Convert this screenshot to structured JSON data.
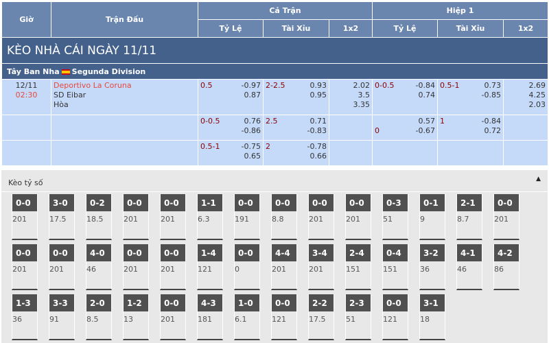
{
  "header": {
    "time": "Giờ",
    "match": "Trận Đấu",
    "full": "Cả Trận",
    "half": "Hiệp 1",
    "hdp": "Tỷ Lệ",
    "ou": "Tài Xỉu",
    "x12": "1x2"
  },
  "title": "KÈO NHÀ CÁI NGÀY 11/11",
  "league": {
    "country": "Tây Ban Nha",
    "name": "Segunda Division",
    "flag_colors": [
      "#c60b1e",
      "#ffc400"
    ]
  },
  "match": {
    "date": "12/11",
    "time": "02:30",
    "home": "Deportivo La Coruna",
    "away": "SD Eibar",
    "draw": "Hòa"
  },
  "rows": [
    {
      "ft_hdp": "0.5",
      "ft_hdp_o": [
        "-0.97",
        "0.87"
      ],
      "ft_ou": "2-2.5",
      "ft_ou_o": [
        "0.93",
        "0.95"
      ],
      "ft_1x2": [
        "2.02",
        "3.5",
        "3.35"
      ],
      "h1_hdp": "0-0.5",
      "h1_hdp_o": [
        "-0.84",
        "0.74"
      ],
      "h1_ou": "0.5-1",
      "h1_ou_o": [
        "0.73",
        "-0.85"
      ],
      "h1_1x2": [
        "2.69",
        "4.25",
        "2.03"
      ]
    },
    {
      "ft_hdp": "0-0.5",
      "ft_hdp_o": [
        "0.76",
        "-0.86"
      ],
      "ft_ou": "2.5",
      "ft_ou_o": [
        "0.71",
        "-0.83"
      ],
      "h1_hdp": "0",
      "h1_hdp_o": [
        "0.57",
        "-0.67"
      ],
      "h1_ou": "1",
      "h1_ou_o": [
        "-0.84",
        "0.72"
      ]
    },
    {
      "ft_hdp": "0.5-1",
      "ft_hdp_o": [
        "-0.75",
        "0.65"
      ],
      "ft_ou": "2",
      "ft_ou_o": [
        "-0.78",
        "0.66"
      ]
    }
  ],
  "correct_score": {
    "label": "Kèo tỷ số",
    "items": [
      [
        "0-0",
        "201"
      ],
      [
        "3-0",
        "17.5"
      ],
      [
        "0-2",
        "18.5"
      ],
      [
        "0-0",
        "201"
      ],
      [
        "0-0",
        "201"
      ],
      [
        "1-1",
        "6.3"
      ],
      [
        "0-0",
        "191"
      ],
      [
        "0-0",
        "8.8"
      ],
      [
        "0-0",
        "201"
      ],
      [
        "0-0",
        "201"
      ],
      [
        "0-3",
        "51"
      ],
      [
        "0-1",
        "9"
      ],
      [
        "2-1",
        "8.7"
      ],
      [
        "0-0",
        "201"
      ],
      [
        "0-0",
        "201"
      ],
      [
        "0-0",
        "201"
      ],
      [
        "4-0",
        "46"
      ],
      [
        "0-0",
        "201"
      ],
      [
        "0-0",
        "201"
      ],
      [
        "1-4",
        "121"
      ],
      [
        "0-0",
        "0"
      ],
      [
        "4-4",
        "201"
      ],
      [
        "3-4",
        "201"
      ],
      [
        "2-4",
        "151"
      ],
      [
        "0-4",
        "151"
      ],
      [
        "3-2",
        "36"
      ],
      [
        "4-1",
        "46"
      ],
      [
        "4-2",
        "86"
      ],
      [
        "1-3",
        "36"
      ],
      [
        "3-3",
        "91"
      ],
      [
        "2-0",
        "8.5"
      ],
      [
        "1-2",
        "13"
      ],
      [
        "0-0",
        "201"
      ],
      [
        "4-3",
        "181"
      ],
      [
        "1-0",
        "6.1"
      ],
      [
        "0-0",
        "121"
      ],
      [
        "2-2",
        "17.5"
      ],
      [
        "2-3",
        "51"
      ],
      [
        "0-0",
        "121"
      ],
      [
        "3-1",
        "18"
      ]
    ]
  }
}
